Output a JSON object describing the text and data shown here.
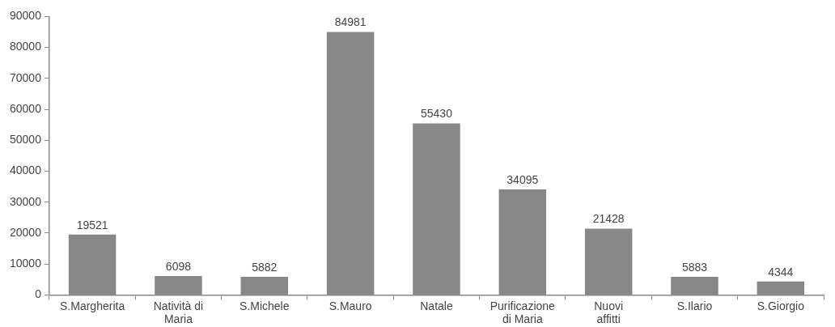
{
  "chart_data": {
    "type": "bar",
    "categories": [
      "S.Margherita",
      "Natività di Maria",
      "S.Michele",
      "S.Mauro",
      "Natale",
      "Purificazione di Maria",
      "Nuovi affitti",
      "S.Ilario",
      "S.Giorgio"
    ],
    "values": [
      19521,
      6098,
      5882,
      84981,
      55430,
      34095,
      21428,
      5883,
      4344
    ],
    "color": "#878787",
    "ylim": [
      0,
      90000
    ],
    "yticks": [
      0,
      10000,
      20000,
      30000,
      40000,
      50000,
      60000,
      70000,
      80000,
      90000
    ],
    "grid": false,
    "legend": false,
    "data_labels": true
  }
}
